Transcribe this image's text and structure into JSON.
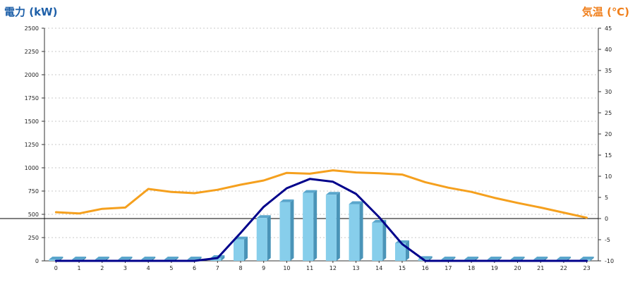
{
  "chart_data": {
    "type": "bar",
    "title": "",
    "left_axis": {
      "label": "電力 (kW)",
      "ylim": [
        0,
        2500
      ],
      "ticks": [
        0,
        250,
        500,
        750,
        1000,
        1250,
        1500,
        1750,
        2000,
        2250,
        2500
      ]
    },
    "right_axis": {
      "label": "気温 (℃)",
      "ylim": [
        -10,
        45
      ],
      "ticks": [
        -10,
        -5,
        0,
        5,
        10,
        15,
        20,
        25,
        30,
        35,
        40,
        45
      ]
    },
    "categories": [
      "0",
      "1",
      "2",
      "3",
      "4",
      "5",
      "6",
      "7",
      "8",
      "9",
      "10",
      "11",
      "12",
      "13",
      "14",
      "15",
      "16",
      "17",
      "18",
      "19",
      "20",
      "21",
      "22",
      "23"
    ],
    "grid": true,
    "zero_line_value_right_axis": 0,
    "series": [
      {
        "kind": "bar",
        "axis": "left",
        "color": "#87ceeb",
        "values": [
          0,
          0,
          0,
          0,
          0,
          0,
          0,
          30,
          230,
          460,
          630,
          730,
          710,
          610,
          410,
          190,
          20,
          0,
          0,
          0,
          0,
          0,
          0,
          0
        ]
      },
      {
        "kind": "line",
        "axis": "left",
        "color": "#00008b",
        "values": [
          0,
          0,
          0,
          0,
          0,
          0,
          0,
          30,
          300,
          580,
          780,
          880,
          850,
          720,
          470,
          180,
          0,
          0,
          0,
          0,
          0,
          0,
          0,
          0
        ]
      },
      {
        "kind": "line",
        "axis": "right",
        "color": "#f5a01e",
        "values": [
          1.5,
          1.2,
          2.3,
          2.6,
          7.0,
          6.3,
          6.0,
          6.8,
          8.0,
          9.0,
          10.8,
          10.6,
          11.4,
          10.9,
          10.7,
          10.4,
          8.6,
          7.3,
          6.3,
          4.9,
          3.7,
          2.6,
          1.4,
          0.2
        ]
      }
    ]
  }
}
